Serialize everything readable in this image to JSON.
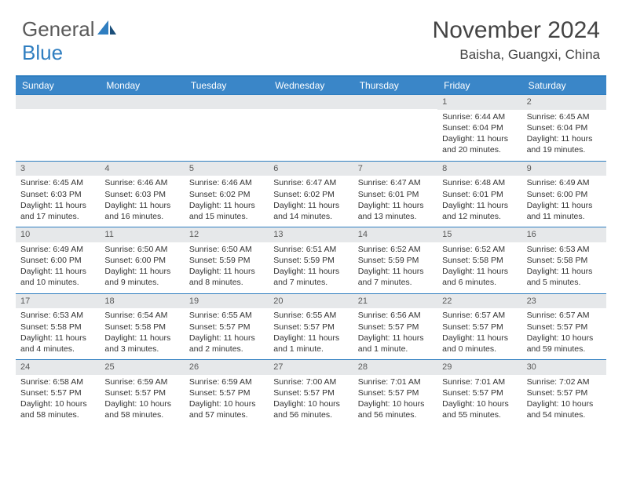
{
  "logo": {
    "text_a": "General",
    "text_b": "Blue",
    "icon_color": "#2f7ec0"
  },
  "title": "November 2024",
  "location": "Baisha, Guangxi, China",
  "colors": {
    "header_bg": "#3a86c8",
    "border": "#2f7ec0",
    "daynum_bg": "#e6e8ea",
    "text": "#333333"
  },
  "day_names": [
    "Sunday",
    "Monday",
    "Tuesday",
    "Wednesday",
    "Thursday",
    "Friday",
    "Saturday"
  ],
  "weeks": [
    [
      null,
      null,
      null,
      null,
      null,
      {
        "n": "1",
        "sunrise": "Sunrise: 6:44 AM",
        "sunset": "Sunset: 6:04 PM",
        "daylight1": "Daylight: 11 hours",
        "daylight2": "and 20 minutes."
      },
      {
        "n": "2",
        "sunrise": "Sunrise: 6:45 AM",
        "sunset": "Sunset: 6:04 PM",
        "daylight1": "Daylight: 11 hours",
        "daylight2": "and 19 minutes."
      }
    ],
    [
      {
        "n": "3",
        "sunrise": "Sunrise: 6:45 AM",
        "sunset": "Sunset: 6:03 PM",
        "daylight1": "Daylight: 11 hours",
        "daylight2": "and 17 minutes."
      },
      {
        "n": "4",
        "sunrise": "Sunrise: 6:46 AM",
        "sunset": "Sunset: 6:03 PM",
        "daylight1": "Daylight: 11 hours",
        "daylight2": "and 16 minutes."
      },
      {
        "n": "5",
        "sunrise": "Sunrise: 6:46 AM",
        "sunset": "Sunset: 6:02 PM",
        "daylight1": "Daylight: 11 hours",
        "daylight2": "and 15 minutes."
      },
      {
        "n": "6",
        "sunrise": "Sunrise: 6:47 AM",
        "sunset": "Sunset: 6:02 PM",
        "daylight1": "Daylight: 11 hours",
        "daylight2": "and 14 minutes."
      },
      {
        "n": "7",
        "sunrise": "Sunrise: 6:47 AM",
        "sunset": "Sunset: 6:01 PM",
        "daylight1": "Daylight: 11 hours",
        "daylight2": "and 13 minutes."
      },
      {
        "n": "8",
        "sunrise": "Sunrise: 6:48 AM",
        "sunset": "Sunset: 6:01 PM",
        "daylight1": "Daylight: 11 hours",
        "daylight2": "and 12 minutes."
      },
      {
        "n": "9",
        "sunrise": "Sunrise: 6:49 AM",
        "sunset": "Sunset: 6:00 PM",
        "daylight1": "Daylight: 11 hours",
        "daylight2": "and 11 minutes."
      }
    ],
    [
      {
        "n": "10",
        "sunrise": "Sunrise: 6:49 AM",
        "sunset": "Sunset: 6:00 PM",
        "daylight1": "Daylight: 11 hours",
        "daylight2": "and 10 minutes."
      },
      {
        "n": "11",
        "sunrise": "Sunrise: 6:50 AM",
        "sunset": "Sunset: 6:00 PM",
        "daylight1": "Daylight: 11 hours",
        "daylight2": "and 9 minutes."
      },
      {
        "n": "12",
        "sunrise": "Sunrise: 6:50 AM",
        "sunset": "Sunset: 5:59 PM",
        "daylight1": "Daylight: 11 hours",
        "daylight2": "and 8 minutes."
      },
      {
        "n": "13",
        "sunrise": "Sunrise: 6:51 AM",
        "sunset": "Sunset: 5:59 PM",
        "daylight1": "Daylight: 11 hours",
        "daylight2": "and 7 minutes."
      },
      {
        "n": "14",
        "sunrise": "Sunrise: 6:52 AM",
        "sunset": "Sunset: 5:59 PM",
        "daylight1": "Daylight: 11 hours",
        "daylight2": "and 7 minutes."
      },
      {
        "n": "15",
        "sunrise": "Sunrise: 6:52 AM",
        "sunset": "Sunset: 5:58 PM",
        "daylight1": "Daylight: 11 hours",
        "daylight2": "and 6 minutes."
      },
      {
        "n": "16",
        "sunrise": "Sunrise: 6:53 AM",
        "sunset": "Sunset: 5:58 PM",
        "daylight1": "Daylight: 11 hours",
        "daylight2": "and 5 minutes."
      }
    ],
    [
      {
        "n": "17",
        "sunrise": "Sunrise: 6:53 AM",
        "sunset": "Sunset: 5:58 PM",
        "daylight1": "Daylight: 11 hours",
        "daylight2": "and 4 minutes."
      },
      {
        "n": "18",
        "sunrise": "Sunrise: 6:54 AM",
        "sunset": "Sunset: 5:58 PM",
        "daylight1": "Daylight: 11 hours",
        "daylight2": "and 3 minutes."
      },
      {
        "n": "19",
        "sunrise": "Sunrise: 6:55 AM",
        "sunset": "Sunset: 5:57 PM",
        "daylight1": "Daylight: 11 hours",
        "daylight2": "and 2 minutes."
      },
      {
        "n": "20",
        "sunrise": "Sunrise: 6:55 AM",
        "sunset": "Sunset: 5:57 PM",
        "daylight1": "Daylight: 11 hours",
        "daylight2": "and 1 minute."
      },
      {
        "n": "21",
        "sunrise": "Sunrise: 6:56 AM",
        "sunset": "Sunset: 5:57 PM",
        "daylight1": "Daylight: 11 hours",
        "daylight2": "and 1 minute."
      },
      {
        "n": "22",
        "sunrise": "Sunrise: 6:57 AM",
        "sunset": "Sunset: 5:57 PM",
        "daylight1": "Daylight: 11 hours",
        "daylight2": "and 0 minutes."
      },
      {
        "n": "23",
        "sunrise": "Sunrise: 6:57 AM",
        "sunset": "Sunset: 5:57 PM",
        "daylight1": "Daylight: 10 hours",
        "daylight2": "and 59 minutes."
      }
    ],
    [
      {
        "n": "24",
        "sunrise": "Sunrise: 6:58 AM",
        "sunset": "Sunset: 5:57 PM",
        "daylight1": "Daylight: 10 hours",
        "daylight2": "and 58 minutes."
      },
      {
        "n": "25",
        "sunrise": "Sunrise: 6:59 AM",
        "sunset": "Sunset: 5:57 PM",
        "daylight1": "Daylight: 10 hours",
        "daylight2": "and 58 minutes."
      },
      {
        "n": "26",
        "sunrise": "Sunrise: 6:59 AM",
        "sunset": "Sunset: 5:57 PM",
        "daylight1": "Daylight: 10 hours",
        "daylight2": "and 57 minutes."
      },
      {
        "n": "27",
        "sunrise": "Sunrise: 7:00 AM",
        "sunset": "Sunset: 5:57 PM",
        "daylight1": "Daylight: 10 hours",
        "daylight2": "and 56 minutes."
      },
      {
        "n": "28",
        "sunrise": "Sunrise: 7:01 AM",
        "sunset": "Sunset: 5:57 PM",
        "daylight1": "Daylight: 10 hours",
        "daylight2": "and 56 minutes."
      },
      {
        "n": "29",
        "sunrise": "Sunrise: 7:01 AM",
        "sunset": "Sunset: 5:57 PM",
        "daylight1": "Daylight: 10 hours",
        "daylight2": "and 55 minutes."
      },
      {
        "n": "30",
        "sunrise": "Sunrise: 7:02 AM",
        "sunset": "Sunset: 5:57 PM",
        "daylight1": "Daylight: 10 hours",
        "daylight2": "and 54 minutes."
      }
    ]
  ]
}
